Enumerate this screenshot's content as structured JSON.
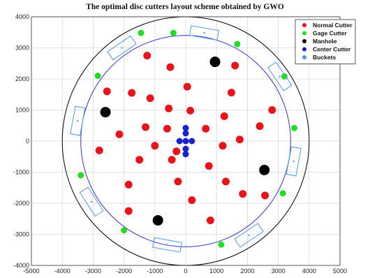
{
  "chart_data": {
    "type": "scatter",
    "title": "The optimal disc cutters layout scheme obtained by GWO",
    "xlabel": "",
    "ylabel": "",
    "xlim": [
      -5000,
      5000
    ],
    "ylim": [
      -4000,
      4000
    ],
    "xticks": [
      -5000,
      -4000,
      -3000,
      -2000,
      -1000,
      0,
      1000,
      2000,
      3000,
      4000,
      5000
    ],
    "yticks": [
      -4000,
      -3000,
      -2000,
      -1000,
      0,
      1000,
      2000,
      3000,
      4000
    ],
    "xtick_labels": [
      "-5000",
      "-4000",
      "-3000",
      "-2000",
      "-1000",
      "0",
      "1000",
      "2000",
      "3000",
      "4000",
      "5000"
    ],
    "ytick_labels": [
      "-4000",
      "-3000",
      "-2000",
      "-1000",
      "0",
      "1000",
      "2000",
      "3000",
      "4000"
    ],
    "grid": true,
    "legend_position": "top-right",
    "circles": [
      {
        "name": "outer-boundary",
        "center": [
          0,
          0
        ],
        "radius": 4000,
        "color": "#000000"
      },
      {
        "name": "gage-circle",
        "center": [
          0,
          0
        ],
        "radius": 3400,
        "color": "#3333cc"
      }
    ],
    "series": [
      {
        "name": "Normal Cutter",
        "color": "#e8141c",
        "points": [
          [
            -1250,
            2750
          ],
          [
            -500,
            2380
          ],
          [
            1600,
            2430
          ],
          [
            50,
            1750
          ],
          [
            -2550,
            1600
          ],
          [
            -1750,
            1550
          ],
          [
            1480,
            1560
          ],
          [
            -1150,
            1380
          ],
          [
            -550,
            1050
          ],
          [
            150,
            980
          ],
          [
            2800,
            1000
          ],
          [
            -2150,
            220
          ],
          [
            -1300,
            450
          ],
          [
            -600,
            400
          ],
          [
            650,
            400
          ],
          [
            1250,
            800
          ],
          [
            2400,
            480
          ],
          [
            -2800,
            -300
          ],
          [
            -1000,
            -150
          ],
          [
            -300,
            -330
          ],
          [
            1200,
            -150
          ],
          [
            1750,
            50
          ],
          [
            -1500,
            -600
          ],
          [
            -450,
            -600
          ],
          [
            750,
            -800
          ],
          [
            -250,
            -1300
          ],
          [
            1300,
            -1300
          ],
          [
            -1850,
            -1400
          ],
          [
            200,
            -1900
          ],
          [
            1850,
            -1700
          ],
          [
            -1850,
            -2250
          ],
          [
            800,
            -2550
          ],
          [
            2570,
            -1750
          ]
        ]
      },
      {
        "name": "Gage Cutter",
        "color": "#22dd22",
        "points": [
          [
            -1450,
            3480
          ],
          [
            -400,
            3480
          ],
          [
            1670,
            3120
          ],
          [
            3200,
            2080
          ],
          [
            -2850,
            2100
          ],
          [
            3520,
            420
          ],
          [
            -3400,
            -1100
          ],
          [
            3150,
            -1680
          ],
          [
            -2000,
            -2870
          ],
          [
            1150,
            -3330
          ]
        ]
      },
      {
        "name": "Manhole",
        "color": "#000000",
        "points": [
          [
            -2600,
            930
          ],
          [
            950,
            2550
          ],
          [
            2550,
            -930
          ],
          [
            -900,
            -2550
          ]
        ]
      },
      {
        "name": "Center Cutter",
        "color": "#1a22cc",
        "points": [
          [
            0,
            420
          ],
          [
            0,
            250
          ],
          [
            0,
            0
          ],
          [
            -200,
            0
          ],
          [
            200,
            0
          ],
          [
            0,
            -250
          ],
          [
            0,
            -420
          ]
        ]
      },
      {
        "name": "Buckets",
        "color": "#5599dd",
        "marker": "rectangle",
        "points": [
          [
            -2070,
            3000
          ],
          [
            600,
            3480
          ],
          [
            3050,
            2080
          ],
          [
            3500,
            -650
          ],
          [
            2050,
            -3030
          ],
          [
            -600,
            -3340
          ],
          [
            -3050,
            -1950
          ],
          [
            -3500,
            650
          ]
        ]
      }
    ]
  }
}
